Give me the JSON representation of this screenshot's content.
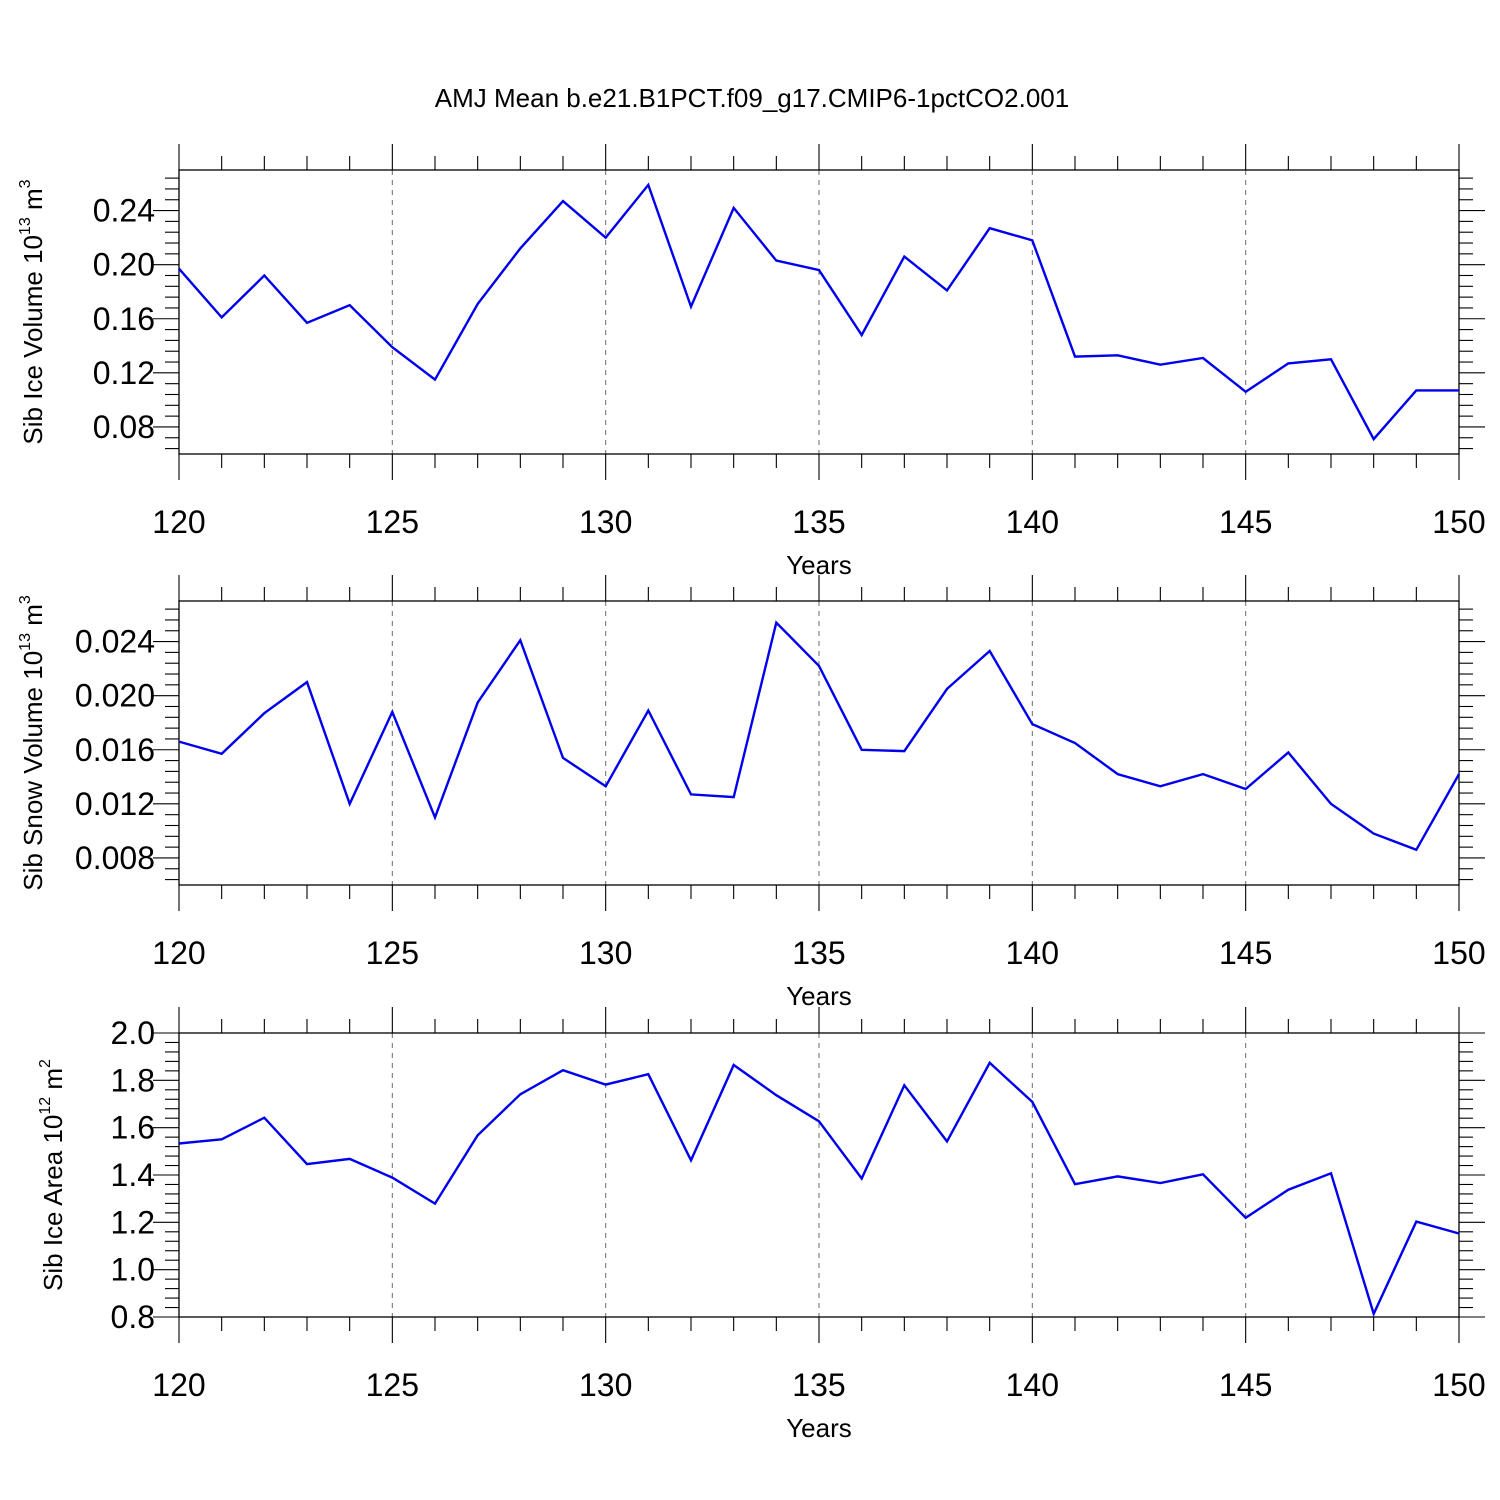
{
  "title": "AMJ Mean b.e21.B1PCT.f09_g17.CMIP6-1pctCO2.001",
  "chart_data": [
    {
      "type": "line",
      "ylabel_main": "Sib Ice Volume 10",
      "ylabel_exp": "13",
      "ylabel_unit": " m",
      "ylabel_unit_exp": "3",
      "xlabel": "Years",
      "xlim": [
        120,
        150
      ],
      "ylim": [
        0.06,
        0.27
      ],
      "ytick_values": [
        0.08,
        0.12,
        0.16,
        0.2,
        0.24
      ],
      "ytick_labels": [
        "0.08",
        "0.12",
        "0.16",
        "0.20",
        "0.24"
      ],
      "xtick_values": [
        120,
        125,
        130,
        135,
        140,
        145,
        150
      ],
      "xtick_labels": [
        "120",
        "125",
        "130",
        "135",
        "140",
        "145",
        "150"
      ],
      "x": [
        120,
        121,
        122,
        123,
        124,
        125,
        126,
        127,
        128,
        129,
        130,
        131,
        132,
        133,
        134,
        135,
        136,
        137,
        138,
        139,
        140,
        141,
        142,
        143,
        144,
        145,
        146,
        147,
        148,
        149,
        150
      ],
      "values": [
        0.197,
        0.161,
        0.192,
        0.157,
        0.17,
        0.139,
        0.115,
        0.171,
        0.212,
        0.247,
        0.22,
        0.259,
        0.169,
        0.242,
        0.203,
        0.196,
        0.148,
        0.206,
        0.181,
        0.227,
        0.218,
        0.132,
        0.133,
        0.126,
        0.131,
        0.106,
        0.127,
        0.13,
        0.071,
        0.107,
        0.107
      ]
    },
    {
      "type": "line",
      "ylabel_main": "Sib Snow Volume 10",
      "ylabel_exp": "13",
      "ylabel_unit": " m",
      "ylabel_unit_exp": "3",
      "xlabel": "Years",
      "xlim": [
        120,
        150
      ],
      "ylim": [
        0.006,
        0.027
      ],
      "ytick_values": [
        0.008,
        0.012,
        0.016,
        0.02,
        0.024
      ],
      "ytick_labels": [
        "0.008",
        "0.012",
        "0.016",
        "0.020",
        "0.024"
      ],
      "xtick_values": [
        120,
        125,
        130,
        135,
        140,
        145,
        150
      ],
      "xtick_labels": [
        "120",
        "125",
        "130",
        "135",
        "140",
        "145",
        "150"
      ],
      "x": [
        120,
        121,
        122,
        123,
        124,
        125,
        126,
        127,
        128,
        129,
        130,
        131,
        132,
        133,
        134,
        135,
        136,
        137,
        138,
        139,
        140,
        141,
        142,
        143,
        144,
        145,
        146,
        147,
        148,
        149,
        150
      ],
      "values": [
        0.0166,
        0.0157,
        0.0187,
        0.021,
        0.012,
        0.0188,
        0.011,
        0.0195,
        0.0241,
        0.0154,
        0.0133,
        0.0189,
        0.0127,
        0.0125,
        0.0254,
        0.0222,
        0.016,
        0.0159,
        0.0205,
        0.0233,
        0.0179,
        0.0165,
        0.0142,
        0.0133,
        0.0142,
        0.0131,
        0.0158,
        0.012,
        0.0098,
        0.0086,
        0.0142
      ]
    },
    {
      "type": "line",
      "ylabel_main": "Sib Ice Area 10",
      "ylabel_exp": "12",
      "ylabel_unit": " m",
      "ylabel_unit_exp": "2",
      "xlabel": "Years",
      "xlim": [
        120,
        150
      ],
      "ylim": [
        0.8,
        2.0
      ],
      "ytick_values": [
        0.8,
        1.0,
        1.2,
        1.4,
        1.6,
        1.8,
        2.0
      ],
      "ytick_labels": [
        "0.8",
        "1.0",
        "1.2",
        "1.4",
        "1.6",
        "1.8",
        "2.0"
      ],
      "xtick_values": [
        120,
        125,
        130,
        135,
        140,
        145,
        150
      ],
      "xtick_labels": [
        "120",
        "125",
        "130",
        "135",
        "140",
        "145",
        "150"
      ],
      "x": [
        120,
        121,
        122,
        123,
        124,
        125,
        126,
        127,
        128,
        129,
        130,
        131,
        132,
        133,
        134,
        135,
        136,
        137,
        138,
        139,
        140,
        141,
        142,
        143,
        144,
        145,
        146,
        147,
        148,
        149,
        150
      ],
      "values": [
        1.533,
        1.551,
        1.642,
        1.446,
        1.468,
        1.389,
        1.279,
        1.568,
        1.741,
        1.843,
        1.782,
        1.826,
        1.462,
        1.865,
        1.737,
        1.627,
        1.385,
        1.779,
        1.542,
        1.874,
        1.709,
        1.361,
        1.394,
        1.366,
        1.403,
        1.219,
        1.338,
        1.407,
        0.813,
        1.203,
        1.153
      ]
    }
  ]
}
